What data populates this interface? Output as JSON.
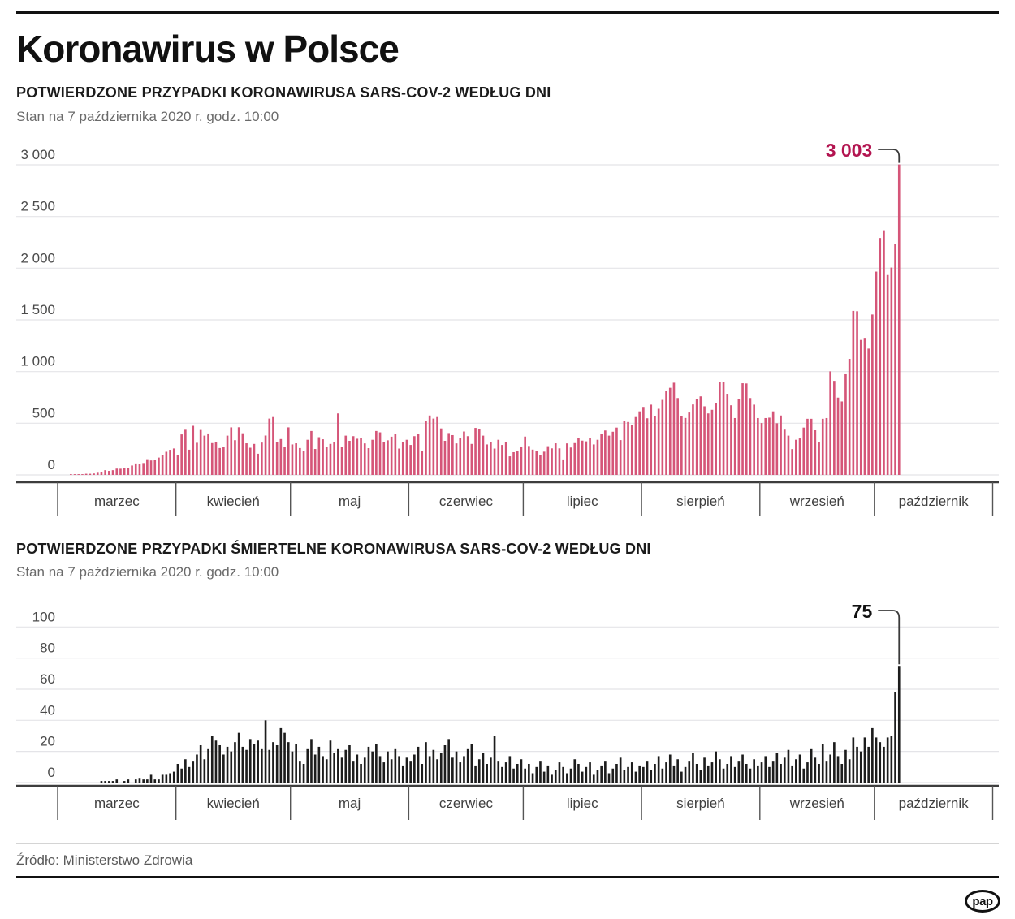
{
  "page": {
    "title": "Koronawirus w Polsce",
    "source": "Źródło: Ministerstwo Zdrowia",
    "logo_text": "pap"
  },
  "chart_data": [
    {
      "type": "bar",
      "title": "POTWIERDZONE PRZYPADKI KORONAWIRUSA SARS-COV-2 WEDŁUG DNI",
      "subtitle": "Stan na 7 października 2020 r. godz. 10:00",
      "xlabel": "",
      "ylabel": "",
      "ylim": [
        0,
        3000
      ],
      "yticks": [
        0,
        500,
        1000,
        1500,
        2000,
        2500,
        3000
      ],
      "ytick_labels": [
        "0",
        "500",
        "1 000",
        "1 500",
        "2 000",
        "2 500",
        "3 000"
      ],
      "grid": true,
      "legend": "none",
      "bar_color": "#d55578",
      "annotation": {
        "text": "3 003",
        "value": 3003,
        "color": "#b31450"
      },
      "months": [
        {
          "label": "marzec",
          "days": 31
        },
        {
          "label": "kwiecień",
          "days": 30
        },
        {
          "label": "maj",
          "days": 31
        },
        {
          "label": "czerwiec",
          "days": 30
        },
        {
          "label": "lipiec",
          "days": 31
        },
        {
          "label": "sierpień",
          "days": 31
        },
        {
          "label": "wrzesień",
          "days": 30
        },
        {
          "label": "październik",
          "days": 31
        }
      ],
      "start_date": "2020-03-01",
      "values": [
        0,
        0,
        0,
        1,
        1,
        4,
        6,
        11,
        11,
        14,
        21,
        31,
        46,
        39,
        46,
        61,
        60,
        68,
        70,
        91,
        111,
        105,
        115,
        152,
        140,
        148,
        168,
        196,
        224,
        243,
        256,
        192,
        392,
        437,
        244,
        475,
        311,
        435,
        380,
        401,
        308,
        318,
        260,
        268,
        380,
        460,
        336,
        461,
        403,
        306,
        263,
        300,
        205,
        313,
        381,
        545,
        560,
        316,
        347,
        268,
        460,
        295,
        306,
        260,
        235,
        340,
        425,
        251,
        365,
        345,
        270,
        300,
        322,
        595,
        270,
        380,
        330,
        375,
        350,
        356,
        305,
        259,
        340,
        425,
        412,
        320,
        335,
        370,
        399,
        255,
        315,
        340,
        290,
        375,
        395,
        230,
        520,
        575,
        545,
        560,
        450,
        330,
        405,
        385,
        305,
        355,
        420,
        375,
        300,
        455,
        440,
        380,
        295,
        320,
        255,
        340,
        290,
        315,
        180,
        220,
        235,
        275,
        371,
        280,
        245,
        231,
        190,
        225,
        278,
        257,
        306,
        257,
        150,
        305,
        265,
        308,
        354,
        332,
        325,
        360,
        295,
        340,
        399,
        430,
        380,
        418,
        458,
        337,
        525,
        512,
        485,
        560,
        615,
        658,
        548,
        680,
        572,
        640,
        726,
        809,
        843,
        892,
        744,
        572,
        551,
        604,
        682,
        732,
        760,
        664,
        595,
        630,
        696,
        903,
        900,
        785,
        674,
        550,
        737,
        887,
        885,
        744,
        680,
        550,
        502,
        550,
        554,
        615,
        500,
        575,
        438,
        380,
        250,
        340,
        353,
        458,
        543,
        543,
        432,
        314,
        543,
        550,
        1002,
        910,
        748,
        711,
        974,
        1123,
        1587,
        1584,
        1306,
        1326,
        1222,
        1552,
        1967,
        2292,
        2367,
        1934,
        2006,
        2236,
        3003
      ]
    },
    {
      "type": "bar",
      "title": "POTWIERDZONE PRZYPADKI ŚMIERTELNE KORONAWIRUSA SARS-COV-2 WEDŁUG DNI",
      "subtitle": "Stan na 7 października 2020 r. godz. 10:00",
      "xlabel": "",
      "ylabel": "",
      "ylim": [
        0,
        100
      ],
      "yticks": [
        0,
        20,
        40,
        60,
        80,
        100
      ],
      "ytick_labels": [
        "0",
        "20",
        "40",
        "60",
        "80",
        "100"
      ],
      "grid": true,
      "legend": "none",
      "bar_color": "#1c1c1c",
      "annotation": {
        "text": "75",
        "value": 75,
        "color": "#111111"
      },
      "months": [
        {
          "label": "marzec",
          "days": 31
        },
        {
          "label": "kwiecień",
          "days": 30
        },
        {
          "label": "maj",
          "days": 31
        },
        {
          "label": "czerwiec",
          "days": 30
        },
        {
          "label": "lipiec",
          "days": 31
        },
        {
          "label": "sierpień",
          "days": 31
        },
        {
          "label": "wrzesień",
          "days": 30
        },
        {
          "label": "październik",
          "days": 31
        }
      ],
      "start_date": "2020-03-01",
      "values": [
        0,
        0,
        0,
        0,
        0,
        0,
        0,
        0,
        0,
        0,
        0,
        1,
        1,
        1,
        1,
        2,
        0,
        1,
        2,
        0,
        2,
        3,
        2,
        2,
        5,
        2,
        2,
        5,
        5,
        6,
        7,
        12,
        9,
        15,
        10,
        14,
        18,
        24,
        15,
        22,
        30,
        27,
        24,
        18,
        23,
        20,
        26,
        32,
        23,
        21,
        28,
        25,
        27,
        22,
        40,
        21,
        26,
        24,
        35,
        32,
        26,
        20,
        25,
        14,
        12,
        22,
        28,
        18,
        23,
        17,
        15,
        27,
        19,
        22,
        16,
        21,
        24,
        14,
        18,
        12,
        16,
        23,
        20,
        25,
        17,
        13,
        20,
        15,
        22,
        17,
        11,
        16,
        14,
        18,
        23,
        12,
        26,
        17,
        21,
        15,
        19,
        24,
        28,
        16,
        20,
        13,
        17,
        22,
        25,
        11,
        15,
        19,
        12,
        16,
        30,
        14,
        10,
        13,
        17,
        9,
        12,
        15,
        9,
        12,
        6,
        10,
        14,
        7,
        11,
        5,
        8,
        13,
        10,
        6,
        9,
        15,
        12,
        7,
        10,
        13,
        5,
        8,
        11,
        14,
        6,
        9,
        12,
        16,
        8,
        10,
        13,
        7,
        11,
        10,
        14,
        8,
        12,
        17,
        9,
        13,
        18,
        11,
        15,
        7,
        10,
        14,
        19,
        12,
        8,
        16,
        11,
        13,
        20,
        15,
        9,
        12,
        17,
        10,
        14,
        18,
        12,
        9,
        15,
        11,
        13,
        17,
        10,
        14,
        19,
        12,
        16,
        21,
        11,
        15,
        18,
        9,
        13,
        22,
        16,
        12,
        25,
        14,
        18,
        26,
        17,
        12,
        21,
        15,
        29,
        23,
        20,
        29,
        23,
        35,
        29,
        26,
        23,
        29,
        30,
        58,
        75
      ]
    }
  ]
}
